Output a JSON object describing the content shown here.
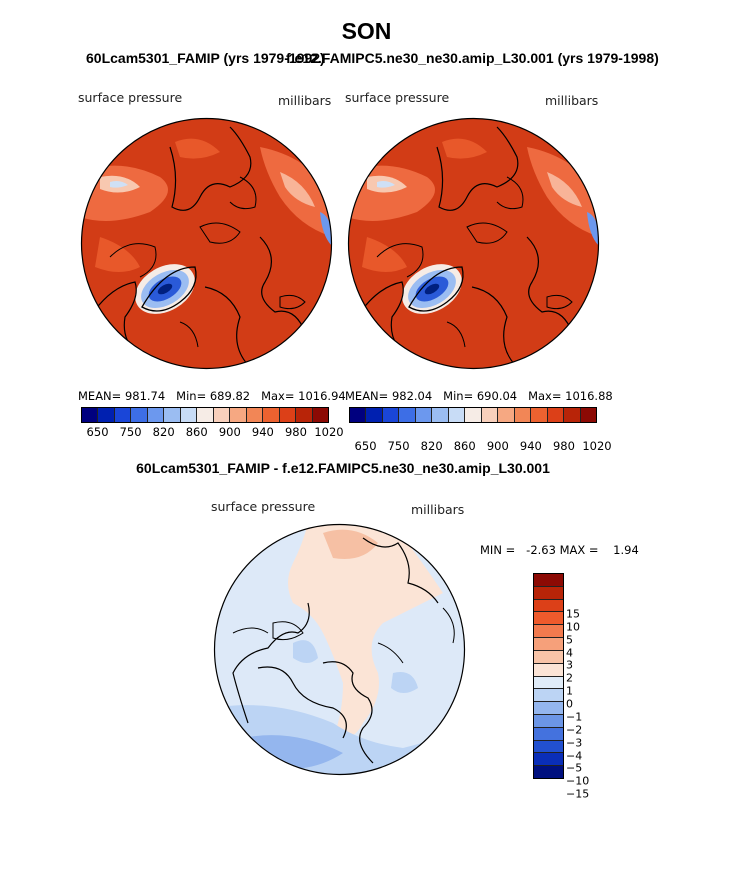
{
  "title": "SON",
  "panels": [
    {
      "subtitle": "60Lcam5301_FAMIP (yrs 1979-1992)",
      "left_label": "surface pressure",
      "right_label": "millibars",
      "stats": {
        "mean": "MEAN= 981.74",
        "min": "Min= 689.82",
        "max": "Max= 1016.94"
      }
    },
    {
      "subtitle": "f.e12.FAMIPC5.ne30_ne30.amip_L30.001 (yrs 1979-1998)",
      "left_label": "surface pressure",
      "right_label": "millibars",
      "stats": {
        "mean": "MEAN= 982.04",
        "min": "Min= 690.04",
        "max": "Max= 1016.88"
      }
    }
  ],
  "diff_panel": {
    "subtitle": "60Lcam5301_FAMIP - f.e12.FAMIPC5.ne30_ne30.amip_L30.001",
    "left_label": "surface pressure",
    "right_label": "millibars",
    "minmax": "MIN =   -2.63 MAX =    1.94"
  },
  "colorbar_top": {
    "colors": [
      "#00007f",
      "#0020b0",
      "#1a46d8",
      "#3d6ee6",
      "#6c98ee",
      "#9bbdf2",
      "#c8dcf6",
      "#f6ece6",
      "#f8d0bc",
      "#f6a882",
      "#f28656",
      "#ec6230",
      "#dc4018",
      "#b82408",
      "#8c0a04"
    ],
    "tick_labels": [
      "650",
      "750",
      "820",
      "860",
      "900",
      "940",
      "980",
      "1020"
    ]
  },
  "colorbar_diff": {
    "colors": [
      "#8c0a04",
      "#b82408",
      "#dc4018",
      "#ee5a2c",
      "#f27a4e",
      "#f6a07a",
      "#f8c4a8",
      "#fbe4d6",
      "#e0ecf8",
      "#bcd4f4",
      "#94b6ee",
      "#6c96e6",
      "#4472de",
      "#2250d0",
      "#0a2eb8",
      "#00107f"
    ],
    "tick_labels": [
      "15",
      "10",
      "5",
      "4",
      "3",
      "2",
      "1",
      "0",
      "−1",
      "−2",
      "−3",
      "−4",
      "−5",
      "−10",
      "−15"
    ]
  }
}
